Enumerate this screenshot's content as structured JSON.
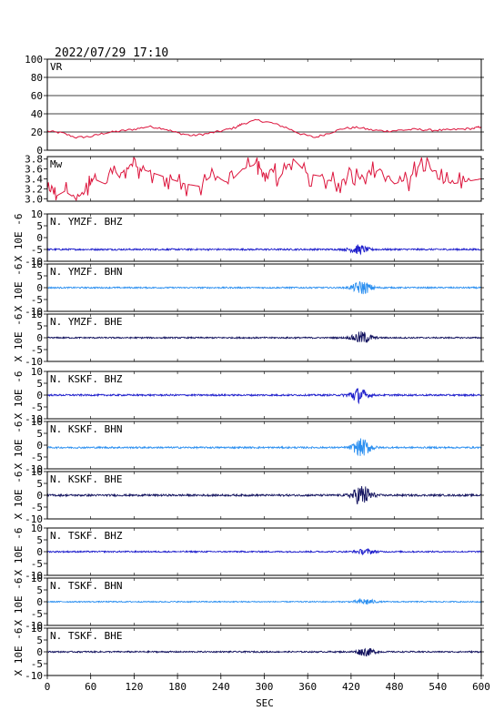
{
  "header": {
    "datetime": "2022/07/29  17:10"
  },
  "chart_data": {
    "type": "line",
    "xlabel": "SEC",
    "xlim": [
      0,
      600
    ],
    "xticks": [
      0,
      60,
      120,
      180,
      240,
      300,
      360,
      420,
      480,
      540,
      600
    ],
    "waveform_unit_label": "X 10E -6",
    "colors": {
      "vr": "#dc143c",
      "mw": "#dc143c",
      "bhz": "#1e1ecc",
      "bhn": "#2b8ff0",
      "bhe": "#12125e",
      "frame": "#000000",
      "grid": "#000000"
    },
    "panels": [
      {
        "id": "vr",
        "kind": "vr",
        "label": "VR",
        "ylim": [
          0,
          100
        ],
        "yticks": [
          0,
          20,
          40,
          60,
          80,
          100
        ],
        "grid": true,
        "color_key": "vr",
        "points": [
          [
            0,
            21
          ],
          [
            20,
            19
          ],
          [
            40,
            14
          ],
          [
            60,
            15
          ],
          [
            80,
            19
          ],
          [
            100,
            21
          ],
          [
            120,
            23
          ],
          [
            140,
            26
          ],
          [
            160,
            24
          ],
          [
            180,
            19
          ],
          [
            200,
            16
          ],
          [
            220,
            18
          ],
          [
            240,
            21
          ],
          [
            260,
            25
          ],
          [
            270,
            29
          ],
          [
            290,
            33
          ],
          [
            310,
            30
          ],
          [
            330,
            25
          ],
          [
            350,
            18
          ],
          [
            370,
            14
          ],
          [
            390,
            19
          ],
          [
            410,
            24
          ],
          [
            430,
            25
          ],
          [
            450,
            22
          ],
          [
            470,
            21
          ],
          [
            490,
            22
          ],
          [
            510,
            23
          ],
          [
            530,
            22
          ],
          [
            550,
            22
          ],
          [
            570,
            23
          ],
          [
            590,
            24
          ],
          [
            600,
            26
          ]
        ]
      },
      {
        "id": "mw",
        "kind": "mw",
        "label": "Mw",
        "ylim": [
          2.95,
          3.85
        ],
        "yticks": [
          3.0,
          3.2,
          3.4,
          3.6,
          3.8
        ],
        "grid": false,
        "color_key": "mw",
        "points": [
          [
            0,
            3.2
          ],
          [
            12,
            3.05
          ],
          [
            24,
            3.15
          ],
          [
            40,
            3.0
          ],
          [
            56,
            3.2
          ],
          [
            64,
            3.4
          ],
          [
            80,
            3.3
          ],
          [
            100,
            3.5
          ],
          [
            116,
            3.7
          ],
          [
            130,
            3.6
          ],
          [
            150,
            3.5
          ],
          [
            170,
            3.4
          ],
          [
            190,
            3.3
          ],
          [
            210,
            3.25
          ],
          [
            230,
            3.5
          ],
          [
            250,
            3.3
          ],
          [
            270,
            3.6
          ],
          [
            290,
            3.7
          ],
          [
            300,
            3.5
          ],
          [
            310,
            3.6
          ],
          [
            320,
            3.4
          ],
          [
            340,
            3.8
          ],
          [
            360,
            3.5
          ],
          [
            380,
            3.45
          ],
          [
            400,
            3.3
          ],
          [
            420,
            3.5
          ],
          [
            440,
            3.4
          ],
          [
            460,
            3.6
          ],
          [
            480,
            3.3
          ],
          [
            500,
            3.4
          ],
          [
            520,
            3.8
          ],
          [
            540,
            3.4
          ],
          [
            560,
            3.3
          ],
          [
            580,
            3.35
          ],
          [
            600,
            3.4
          ]
        ]
      },
      {
        "id": "ymzf-bhz",
        "kind": "wave",
        "label": "N. YMZF. BHZ",
        "ylim": [
          -10,
          10
        ],
        "yticks": [
          -10,
          -5,
          0,
          5,
          10
        ],
        "baseline": -5,
        "noise": 0.35,
        "event_amp": 0.9,
        "event_at": 430,
        "color_key": "bhz"
      },
      {
        "id": "ymzf-bhn",
        "kind": "wave",
        "label": "N. YMZF. BHN",
        "ylim": [
          -10,
          10
        ],
        "yticks": [
          -10,
          -5,
          0,
          5,
          10
        ],
        "baseline": 0,
        "noise": 0.3,
        "event_amp": 1.4,
        "event_at": 435,
        "color_key": "bhn"
      },
      {
        "id": "ymzf-bhe",
        "kind": "wave",
        "label": "N. YMZF. BHE",
        "ylim": [
          -10,
          10
        ],
        "yticks": [
          -10,
          -5,
          0,
          5,
          10
        ],
        "baseline": 0,
        "noise": 0.3,
        "event_amp": 1.3,
        "event_at": 435,
        "color_key": "bhe"
      },
      {
        "id": "kskf-bhz",
        "kind": "wave",
        "label": "N. KSKF. BHZ",
        "ylim": [
          -10,
          10
        ],
        "yticks": [
          -10,
          -5,
          0,
          5,
          10
        ],
        "baseline": 0,
        "noise": 0.35,
        "event_amp": 1.5,
        "event_at": 430,
        "color_key": "bhz"
      },
      {
        "id": "kskf-bhn",
        "kind": "wave",
        "label": "N. KSKF. BHN",
        "ylim": [
          -10,
          10
        ],
        "yticks": [
          -10,
          -5,
          0,
          5,
          10
        ],
        "baseline": -1,
        "noise": 0.35,
        "event_amp": 1.8,
        "event_at": 435,
        "color_key": "bhn"
      },
      {
        "id": "kskf-bhe",
        "kind": "wave",
        "label": "N. KSKF. BHE",
        "ylim": [
          -10,
          10
        ],
        "yticks": [
          -10,
          -5,
          0,
          5,
          10
        ],
        "baseline": 0,
        "noise": 0.4,
        "event_amp": 2.2,
        "event_at": 435,
        "color_key": "bhe"
      },
      {
        "id": "tskf-bhz",
        "kind": "wave",
        "label": "N. TSKF. BHZ",
        "ylim": [
          -10,
          10
        ],
        "yticks": [
          -10,
          -5,
          0,
          5,
          10
        ],
        "baseline": 0,
        "noise": 0.3,
        "event_amp": 0.5,
        "event_at": 440,
        "color_key": "bhz"
      },
      {
        "id": "tskf-bhn",
        "kind": "wave",
        "label": "N. TSKF. BHN",
        "ylim": [
          -10,
          10
        ],
        "yticks": [
          -10,
          -5,
          0,
          5,
          10
        ],
        "baseline": 0,
        "noise": 0.25,
        "event_amp": 0.6,
        "event_at": 440,
        "color_key": "bhn"
      },
      {
        "id": "tskf-bhe",
        "kind": "wave",
        "label": "N. TSKF. BHE",
        "ylim": [
          -10,
          10
        ],
        "yticks": [
          -10,
          -5,
          0,
          5,
          10
        ],
        "baseline": 0,
        "noise": 0.3,
        "event_amp": 0.8,
        "event_at": 440,
        "color_key": "bhe"
      }
    ]
  }
}
